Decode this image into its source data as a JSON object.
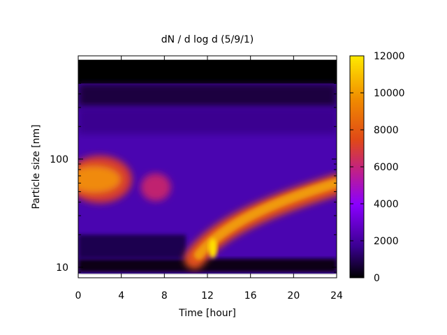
{
  "chart_data": {
    "type": "heatmap",
    "title": "dN / d log d (5/9/1)",
    "xlabel": "Time [hour]",
    "ylabel": "Particle size [nm]",
    "x_range": [
      0,
      24
    ],
    "x_ticks": [
      0,
      4,
      8,
      12,
      16,
      20,
      24
    ],
    "y_scale": "log",
    "y_range": [
      8,
      900
    ],
    "y_tick_labels": [
      {
        "value": 10,
        "label": "10"
      },
      {
        "value": 100,
        "label": "100"
      }
    ],
    "colorbar": {
      "range": [
        0,
        12000
      ],
      "ticks": [
        0,
        2000,
        4000,
        6000,
        8000,
        10000,
        12000
      ],
      "palette": [
        "#000000",
        "#3a0090",
        "#8a00ff",
        "#c01f8a",
        "#e04818",
        "#f08a00",
        "#ffea00"
      ]
    },
    "features": [
      {
        "name": "morning accumulation mode",
        "time_range": [
          0,
          5
        ],
        "diameter_nm": 60,
        "peak_value": 8500
      },
      {
        "name": "weak mid-morning mode",
        "time_range": [
          6,
          9
        ],
        "diameter_nm": 55,
        "peak_value": 6000
      },
      {
        "name": "new particle formation onset",
        "time": 12.5,
        "diameter_nm": 14,
        "peak_value": 11000
      },
      {
        "name": "growing mode",
        "time_range": [
          11,
          24
        ],
        "diameter_start_nm": 13,
        "diameter_end_nm": 60,
        "peak_value": 8500
      }
    ],
    "grid": false,
    "legend": "colorbar-right"
  }
}
